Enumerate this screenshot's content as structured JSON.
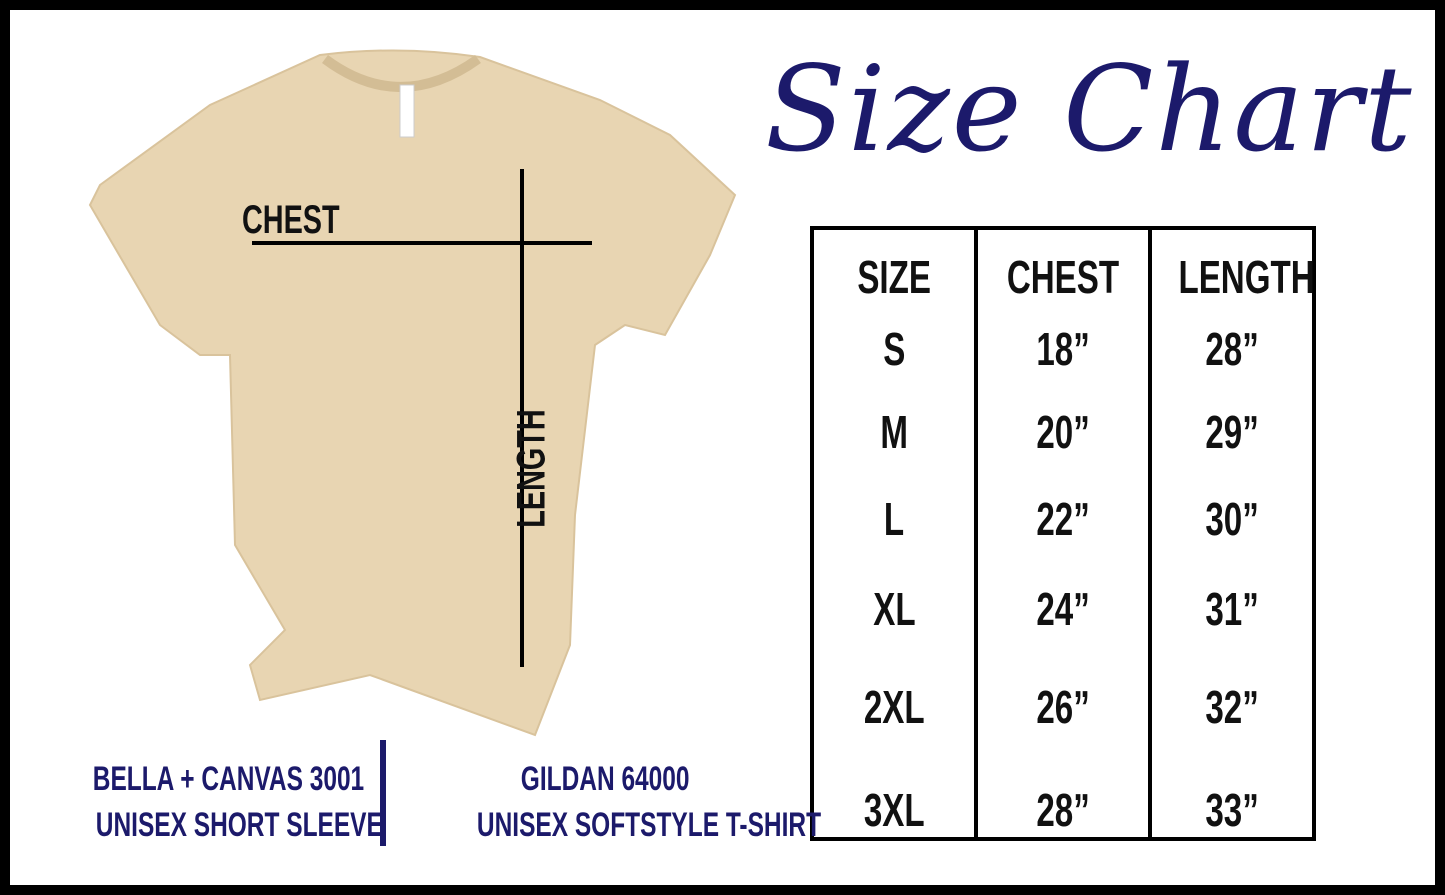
{
  "title": "Size Chart",
  "shirt_labels": {
    "chest": "CHEST",
    "length": "LENGTH"
  },
  "table": {
    "headers": [
      "SIZE",
      "CHEST",
      "LENGTH"
    ],
    "rows": [
      [
        "S",
        "18”",
        "28”"
      ],
      [
        "M",
        "20”",
        "29”"
      ],
      [
        "L",
        "22”",
        "30”"
      ],
      [
        "XL",
        "24”",
        "31”"
      ],
      [
        "2XL",
        "26”",
        "32”"
      ],
      [
        "3XL",
        "28”",
        "33”"
      ]
    ]
  },
  "brands": [
    {
      "line1": "BELLA + CANVAS 3001",
      "line2": "UNISEX SHORT SLEEVE"
    },
    {
      "line1": "GILDAN 64000",
      "line2": "UNISEX SOFTSTYLE T-SHIRT"
    }
  ],
  "colors": {
    "accent": "#1c1a6b",
    "shirt": "#e8d5b2",
    "border": "#000000"
  }
}
